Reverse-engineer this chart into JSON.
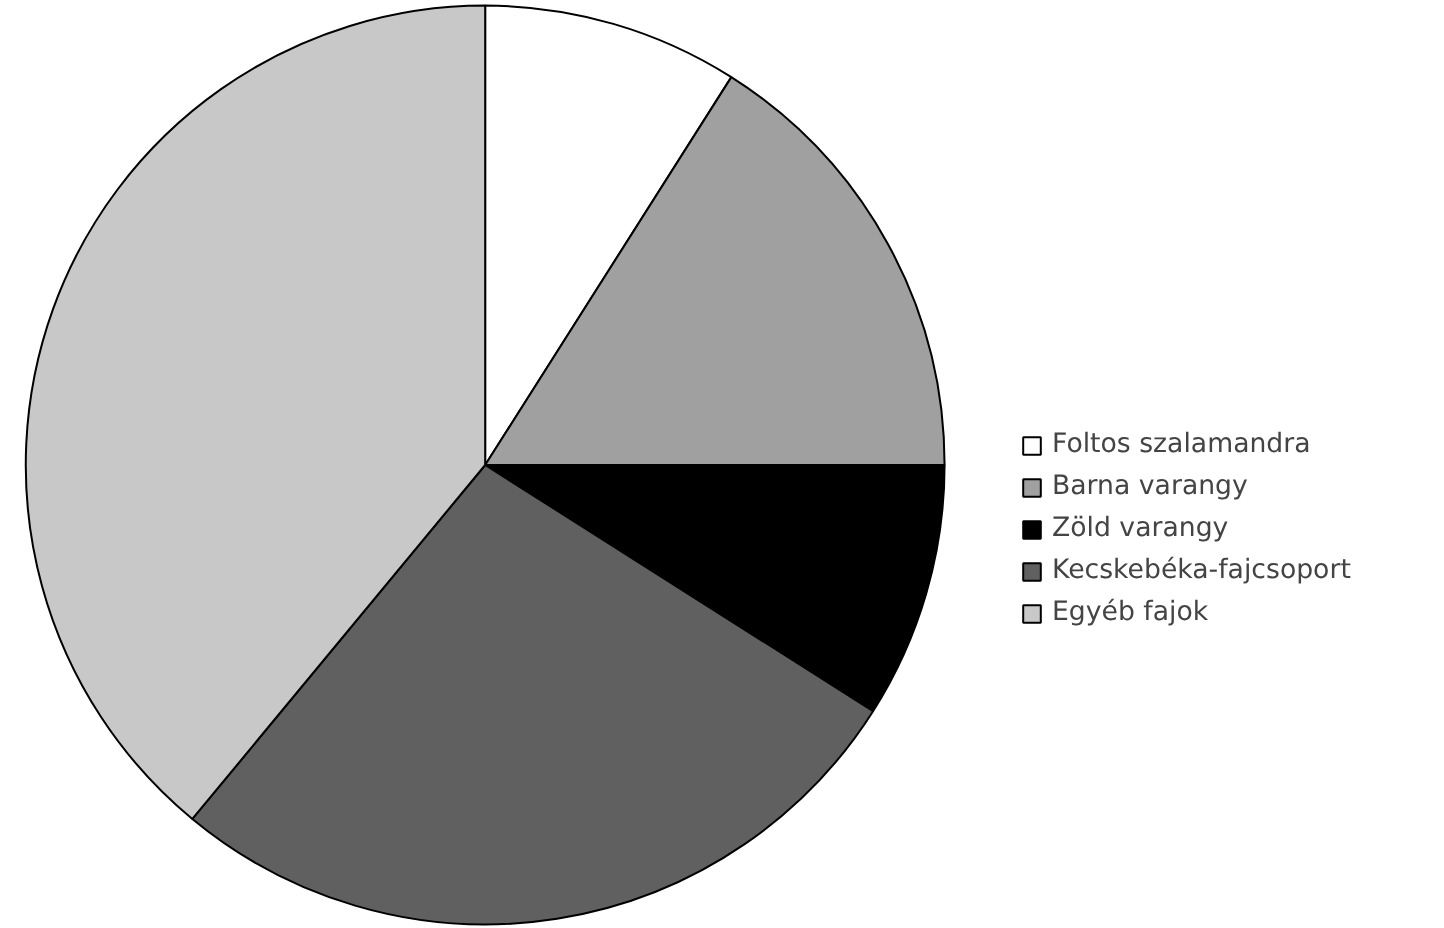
{
  "chart_data": {
    "type": "pie",
    "categories": [
      "Foltos szalamandra",
      "Barna varangy",
      "Zöld varangy",
      "Kecskebéka-fajcsoport",
      "Egyéb fajok"
    ],
    "values": [
      9,
      16,
      9,
      27,
      39
    ],
    "colors": [
      "#ffffff",
      "#a0a0a0",
      "#000000",
      "#606060",
      "#c8c8c8"
    ],
    "legend": "right"
  }
}
